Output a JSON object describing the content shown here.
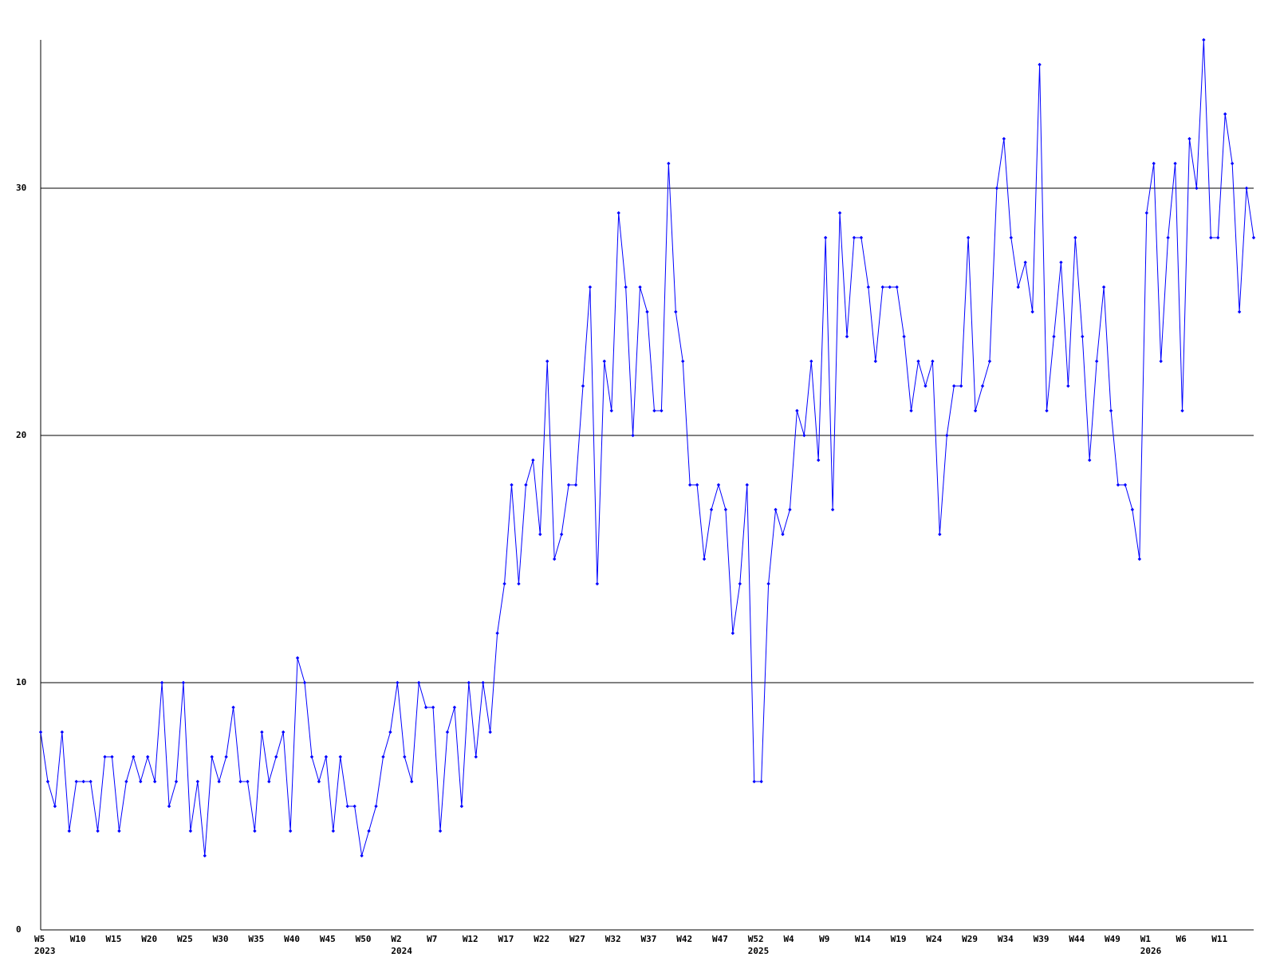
{
  "chart_data": {
    "type": "line",
    "categories": [
      "W5",
      null,
      null,
      null,
      null,
      "W10",
      null,
      null,
      null,
      null,
      "W15",
      null,
      null,
      null,
      null,
      "W20",
      null,
      null,
      null,
      null,
      "W25",
      null,
      null,
      null,
      null,
      "W30",
      null,
      null,
      null,
      null,
      "W35",
      null,
      null,
      null,
      null,
      "W40",
      null,
      null,
      null,
      null,
      "W45",
      null,
      null,
      null,
      null,
      "W50",
      null,
      null,
      null,
      null,
      "W2",
      null,
      null,
      null,
      null,
      "W7",
      null,
      null,
      null,
      null,
      "W12",
      null,
      null,
      null,
      null,
      "W17",
      null,
      null,
      null,
      null,
      "W22",
      null,
      null,
      null,
      null,
      "W27",
      null,
      null,
      null,
      null,
      "W32",
      null,
      null,
      null,
      null,
      "W37",
      null,
      null,
      null,
      null,
      "W42",
      null,
      null,
      null,
      null,
      "W47",
      null,
      null,
      null,
      null,
      "W52",
      null,
      null,
      null,
      null,
      "W4",
      null,
      null,
      null,
      null,
      "W9",
      null,
      null,
      null,
      null,
      "W14",
      null,
      null,
      null,
      null,
      "W19",
      null,
      null,
      null,
      null,
      "W24",
      null,
      null,
      null,
      null,
      "W29",
      null,
      null,
      null,
      null,
      "W34",
      null,
      null,
      null,
      null,
      "W39",
      null,
      null,
      null,
      null,
      "W44",
      null,
      null,
      null,
      null,
      "W49",
      null,
      null,
      null,
      null,
      "W1",
      null,
      null,
      null,
      null,
      "W6",
      null,
      null,
      null,
      null,
      "W11",
      null,
      null,
      null,
      null,
      null
    ],
    "category_years": [
      "2023",
      null,
      null,
      null,
      null,
      null,
      null,
      null,
      null,
      null,
      null,
      null,
      null,
      null,
      null,
      null,
      null,
      null,
      null,
      null,
      null,
      null,
      null,
      null,
      null,
      null,
      null,
      null,
      null,
      null,
      null,
      null,
      null,
      null,
      null,
      null,
      null,
      null,
      null,
      null,
      null,
      null,
      null,
      null,
      null,
      null,
      null,
      null,
      null,
      null,
      "2024",
      null,
      null,
      null,
      null,
      null,
      null,
      null,
      null,
      null,
      null,
      null,
      null,
      null,
      null,
      null,
      null,
      null,
      null,
      null,
      null,
      null,
      null,
      null,
      null,
      null,
      null,
      null,
      null,
      null,
      null,
      null,
      null,
      null,
      null,
      null,
      null,
      null,
      null,
      null,
      null,
      null,
      null,
      null,
      null,
      null,
      null,
      null,
      null,
      null,
      "2025",
      null,
      null,
      null,
      null,
      null,
      null,
      null,
      null,
      null,
      null,
      null,
      null,
      null,
      null,
      null,
      null,
      null,
      null,
      null,
      null,
      null,
      null,
      null,
      null,
      null,
      null,
      null,
      null,
      null,
      null,
      null,
      null,
      null,
      null,
      null,
      null,
      null,
      null,
      null,
      null,
      null,
      null,
      null,
      null,
      null,
      null,
      null,
      null,
      null,
      null,
      null,
      null,
      null,
      null,
      "2026",
      null,
      null,
      null,
      null,
      null,
      null,
      null,
      null,
      null,
      null,
      null,
      null,
      null,
      null,
      null
    ],
    "series": [
      {
        "color": "#0000ff",
        "values": [
          8,
          6,
          5,
          8,
          4,
          6,
          6,
          6,
          4,
          7,
          7,
          4,
          6,
          7,
          6,
          7,
          6,
          10,
          5,
          6,
          10,
          4,
          6,
          3,
          7,
          6,
          7,
          9,
          6,
          6,
          4,
          8,
          6,
          7,
          8,
          4,
          11,
          10,
          7,
          6,
          7,
          4,
          7,
          5,
          5,
          3,
          4,
          5,
          7,
          8,
          10,
          7,
          6,
          10,
          9,
          9,
          4,
          8,
          9,
          5,
          10,
          7,
          10,
          8,
          12,
          14,
          18,
          14,
          18,
          19,
          16,
          23,
          15,
          16,
          18,
          18,
          22,
          26,
          14,
          23,
          21,
          29,
          26,
          20,
          26,
          25,
          21,
          21,
          31,
          25,
          23,
          18,
          18,
          15,
          17,
          18,
          17,
          12,
          14,
          18,
          6,
          6,
          14,
          17,
          16,
          17,
          21,
          20,
          23,
          19,
          28,
          17,
          29,
          24,
          28,
          28,
          26,
          23,
          26,
          26,
          26,
          24,
          21,
          23,
          22,
          23,
          16,
          20,
          22,
          22,
          28,
          21,
          22,
          23,
          30,
          32,
          28,
          26,
          27,
          25,
          35,
          21,
          24,
          27,
          22,
          28,
          24,
          19,
          23,
          26,
          21,
          18,
          18,
          17,
          15,
          29,
          31,
          23,
          28,
          31,
          21,
          32,
          30,
          36,
          28,
          28,
          33,
          31,
          25,
          30,
          28
        ]
      }
    ],
    "ylim": [
      0,
      36
    ],
    "yticks": [
      0,
      10,
      20,
      30
    ],
    "grid": true
  }
}
